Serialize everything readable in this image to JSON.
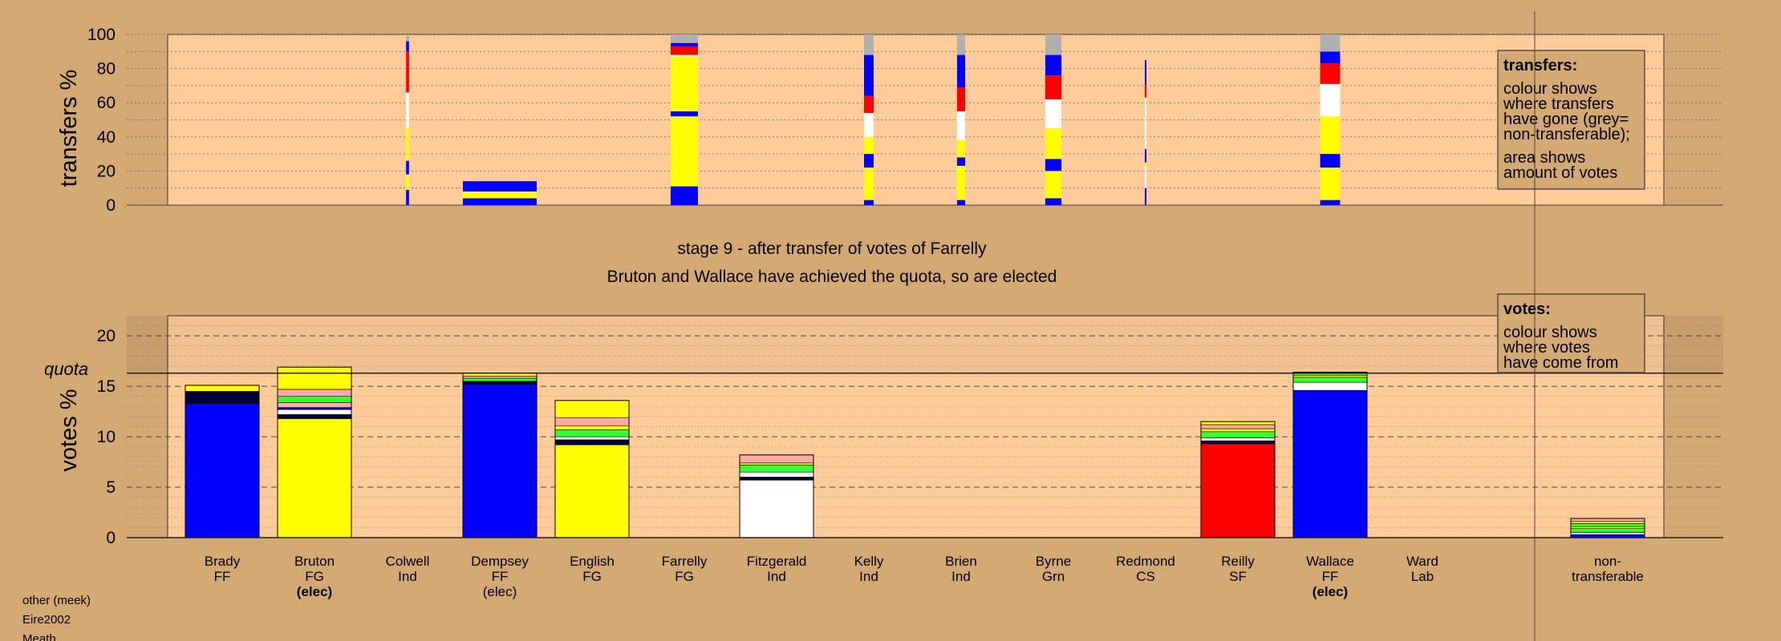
{
  "colors": {
    "page_bg": "#D4A872",
    "plot_bg": "#FFCC99",
    "FF": "#0000FF",
    "FG": "#FFFF00",
    "Lab": "#FF0000",
    "Grn": "#33FF33",
    "Ind": "#FFFFFF",
    "CS": "#FFAAAA",
    "other": "#000033",
    "nontransferable": "#B0B0B0"
  },
  "stage_title": "stage 9 - after transfer of votes of Farrelly",
  "stage_subtitle": "Bruton and Wallace have achieved the quota, so are elected",
  "quota_label": "quota",
  "footer": [
    "other (meek)",
    "Eire2002",
    "Meath"
  ],
  "transfers_box": {
    "title": "transfers:",
    "lines": [
      "colour shows",
      "where transfers",
      "have gone (grey=",
      "non-transferable);",
      "area shows",
      "amount of votes"
    ]
  },
  "votes_box": {
    "title": "votes:",
    "lines": [
      "colour shows",
      "where votes",
      "have come from"
    ]
  },
  "chart_data": [
    {
      "type": "bar",
      "name": "transfers",
      "ylabel": "transfers %",
      "ylim": [
        0,
        100
      ],
      "yticks": [
        0,
        20,
        40,
        60,
        80,
        100
      ],
      "grid": "dotted every 10",
      "legend": "right box",
      "categories": [
        "Brady",
        "Bruton",
        "Colwell",
        "Dempsey",
        "English",
        "Farrelly",
        "Fitzgerald",
        "Kelly",
        "Brien",
        "Byrne",
        "Redmond",
        "Reilly",
        "Wallace",
        "Ward",
        "non-transferable"
      ],
      "bars": [
        {
          "candidate": "Colwell",
          "width_fraction": 0.04,
          "segments": [
            {
              "color": "FF",
              "from": 0,
              "to": 9
            },
            {
              "color": "FG",
              "from": 9,
              "to": 18
            },
            {
              "color": "FF",
              "from": 18,
              "to": 26
            },
            {
              "color": "FG",
              "from": 26,
              "to": 45
            },
            {
              "color": "Ind",
              "from": 45,
              "to": 66
            },
            {
              "color": "Lab",
              "from": 66,
              "to": 90
            },
            {
              "color": "FF",
              "from": 90,
              "to": 96
            },
            {
              "color": "nontransferable",
              "from": 96,
              "to": 100
            }
          ]
        },
        {
          "candidate": "Dempsey",
          "width_fraction": 1.0,
          "segments": [
            {
              "color": "FF",
              "from": 0,
              "to": 4
            },
            {
              "color": "FG",
              "from": 4,
              "to": 8
            },
            {
              "color": "FF",
              "from": 8,
              "to": 14
            }
          ]
        },
        {
          "candidate": "Farrelly",
          "width_fraction": 0.37,
          "segments": [
            {
              "color": "FF",
              "from": 0,
              "to": 11
            },
            {
              "color": "FG",
              "from": 11,
              "to": 52
            },
            {
              "color": "FF",
              "from": 52,
              "to": 55
            },
            {
              "color": "FG",
              "from": 55,
              "to": 87
            },
            {
              "color": "Ind",
              "from": 87,
              "to": 88
            },
            {
              "color": "Lab",
              "from": 88,
              "to": 93
            },
            {
              "color": "FF",
              "from": 93,
              "to": 95
            },
            {
              "color": "nontransferable",
              "from": 95,
              "to": 100
            }
          ]
        },
        {
          "candidate": "Kelly",
          "width_fraction": 0.13,
          "segments": [
            {
              "color": "FF",
              "from": 0,
              "to": 3
            },
            {
              "color": "FG",
              "from": 3,
              "to": 22
            },
            {
              "color": "FF",
              "from": 22,
              "to": 30
            },
            {
              "color": "FG",
              "from": 30,
              "to": 40
            },
            {
              "color": "Ind",
              "from": 40,
              "to": 54
            },
            {
              "color": "Lab",
              "from": 54,
              "to": 64
            },
            {
              "color": "FF",
              "from": 64,
              "to": 88
            },
            {
              "color": "nontransferable",
              "from": 88,
              "to": 100
            }
          ]
        },
        {
          "candidate": "Brien",
          "width_fraction": 0.11,
          "segments": [
            {
              "color": "FF",
              "from": 0,
              "to": 3
            },
            {
              "color": "FG",
              "from": 3,
              "to": 23
            },
            {
              "color": "FF",
              "from": 23,
              "to": 28
            },
            {
              "color": "FG",
              "from": 28,
              "to": 38
            },
            {
              "color": "Ind",
              "from": 38,
              "to": 55
            },
            {
              "color": "Lab",
              "from": 55,
              "to": 69
            },
            {
              "color": "FF",
              "from": 69,
              "to": 88
            },
            {
              "color": "nontransferable",
              "from": 88,
              "to": 100
            }
          ]
        },
        {
          "candidate": "Byrne",
          "width_fraction": 0.22,
          "segments": [
            {
              "color": "FF",
              "from": 0,
              "to": 4
            },
            {
              "color": "FG",
              "from": 4,
              "to": 20
            },
            {
              "color": "FF",
              "from": 20,
              "to": 27
            },
            {
              "color": "FG",
              "from": 27,
              "to": 45
            },
            {
              "color": "Ind",
              "from": 45,
              "to": 62
            },
            {
              "color": "Lab",
              "from": 62,
              "to": 76
            },
            {
              "color": "FF",
              "from": 76,
              "to": 88
            },
            {
              "color": "nontransferable",
              "from": 88,
              "to": 100
            }
          ]
        },
        {
          "candidate": "Redmond",
          "width_fraction": 0.02,
          "segments": [
            {
              "color": "FF",
              "from": 0,
              "to": 10
            },
            {
              "color": "Ind",
              "from": 10,
              "to": 22
            },
            {
              "color": "FG",
              "from": 22,
              "to": 25
            },
            {
              "color": "FF",
              "from": 25,
              "to": 33
            },
            {
              "color": "Ind",
              "from": 33,
              "to": 63
            },
            {
              "color": "Lab",
              "from": 63,
              "to": 70
            },
            {
              "color": "FF",
              "from": 70,
              "to": 85
            }
          ]
        },
        {
          "candidate": "Wallace",
          "width_fraction": 0.27,
          "segments": [
            {
              "color": "FF",
              "from": 0,
              "to": 3
            },
            {
              "color": "FG",
              "from": 3,
              "to": 22
            },
            {
              "color": "FF",
              "from": 22,
              "to": 30
            },
            {
              "color": "FG",
              "from": 30,
              "to": 52
            },
            {
              "color": "Ind",
              "from": 52,
              "to": 71
            },
            {
              "color": "Lab",
              "from": 71,
              "to": 83
            },
            {
              "color": "FF",
              "from": 83,
              "to": 90
            },
            {
              "color": "nontransferable",
              "from": 90,
              "to": 100
            }
          ]
        }
      ]
    },
    {
      "type": "bar",
      "name": "votes",
      "ylabel": "votes %",
      "ylim": [
        0,
        22
      ],
      "yticks": [
        0,
        5,
        10,
        15,
        20
      ],
      "quota": 16.3,
      "grid": "dashed every 5, dotted every 1",
      "legend": "right box",
      "candidates": [
        {
          "name": "Brady",
          "party": "FF",
          "elected": "",
          "total": 15.1,
          "segments": [
            {
              "color": "FF",
              "value": 13.3
            },
            {
              "color": "other",
              "value": 1.2
            },
            {
              "color": "FG",
              "value": 0.6
            }
          ]
        },
        {
          "name": "Bruton",
          "party": "FG",
          "elected": "(elec)",
          "total": 16.9,
          "segments": [
            {
              "color": "FG",
              "value": 11.8
            },
            {
              "color": "other",
              "value": 0.4
            },
            {
              "color": "Ind",
              "value": 0.5
            },
            {
              "color": "FF",
              "value": 0.2
            },
            {
              "color": "CS",
              "value": 0.5
            },
            {
              "color": "Grn",
              "value": 0.6
            },
            {
              "color": "CS",
              "value": 0.7
            },
            {
              "color": "FG",
              "value": 2.2
            }
          ]
        },
        {
          "name": "Colwell",
          "party": "Ind",
          "elected": "",
          "total": 0,
          "segments": []
        },
        {
          "name": "Dempsey",
          "party": "FF",
          "elected": "(elec)",
          "total": 16.3,
          "segments": [
            {
              "color": "FF",
              "value": 15.2
            },
            {
              "color": "other",
              "value": 0.3
            },
            {
              "color": "Grn",
              "value": 0.3
            },
            {
              "color": "CS",
              "value": 0.2
            },
            {
              "color": "FG",
              "value": 0.3
            }
          ]
        },
        {
          "name": "English",
          "party": "FG",
          "elected": "",
          "total": 13.6,
          "segments": [
            {
              "color": "FG",
              "value": 9.2
            },
            {
              "color": "other",
              "value": 0.5
            },
            {
              "color": "Ind",
              "value": 0.3
            },
            {
              "color": "Grn",
              "value": 0.7
            },
            {
              "color": "FG",
              "value": 0.4
            },
            {
              "color": "CS",
              "value": 0.8
            },
            {
              "color": "FG",
              "value": 1.7
            }
          ]
        },
        {
          "name": "Farrelly",
          "party": "FG",
          "elected": "",
          "total": 0,
          "segments": []
        },
        {
          "name": "Fitzgerald",
          "party": "Ind",
          "elected": "",
          "total": 8.2,
          "segments": [
            {
              "color": "Ind",
              "value": 5.7
            },
            {
              "color": "other",
              "value": 0.3
            },
            {
              "color": "Ind",
              "value": 0.5
            },
            {
              "color": "Grn",
              "value": 0.7
            },
            {
              "color": "FG",
              "value": 0.2
            },
            {
              "color": "CS",
              "value": 0.8
            }
          ]
        },
        {
          "name": "Kelly",
          "party": "Ind",
          "elected": "",
          "total": 0,
          "segments": []
        },
        {
          "name": "Brien",
          "party": "Ind",
          "elected": "",
          "total": 0,
          "segments": []
        },
        {
          "name": "Byrne",
          "party": "Grn",
          "elected": "",
          "total": 0,
          "segments": []
        },
        {
          "name": "Redmond",
          "party": "CS",
          "elected": "",
          "total": 0,
          "segments": []
        },
        {
          "name": "Reilly",
          "party": "SF",
          "elected": "",
          "total": 11.5,
          "segments": [
            {
              "color": "Lab",
              "value": 9.3
            },
            {
              "color": "other",
              "value": 0.3
            },
            {
              "color": "Ind",
              "value": 0.3
            },
            {
              "color": "Grn",
              "value": 0.6
            },
            {
              "color": "FG",
              "value": 0.3
            },
            {
              "color": "CS",
              "value": 0.4
            },
            {
              "color": "FG",
              "value": 0.3
            }
          ]
        },
        {
          "name": "Wallace",
          "party": "FF",
          "elected": "(elec)",
          "total": 16.4,
          "segments": [
            {
              "color": "FF",
              "value": 14.6
            },
            {
              "color": "Ind",
              "value": 0.8
            },
            {
              "color": "Grn",
              "value": 0.5
            },
            {
              "color": "FG",
              "value": 0.2
            },
            {
              "color": "Grn",
              "value": 0.3
            }
          ]
        },
        {
          "name": "Ward",
          "party": "Lab",
          "elected": "",
          "total": 0,
          "segments": []
        },
        {
          "name": "non-",
          "party": "transferable",
          "elected": "",
          "total": 1.9,
          "segments": [
            {
              "color": "FF",
              "value": 0.3
            },
            {
              "color": "Ind",
              "value": 0.2
            },
            {
              "color": "Grn",
              "value": 0.4
            },
            {
              "color": "FG",
              "value": 0.2
            },
            {
              "color": "Grn",
              "value": 0.3
            },
            {
              "color": "FG",
              "value": 0.2
            },
            {
              "color": "CS",
              "value": 0.3
            }
          ]
        }
      ]
    }
  ]
}
